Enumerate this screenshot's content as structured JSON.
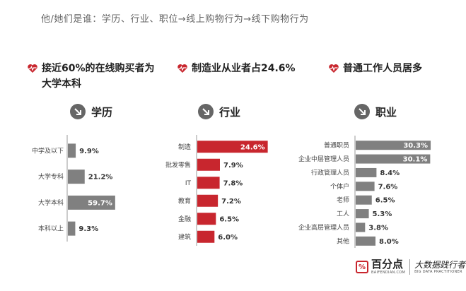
{
  "page_title": "他/她们是谁：学历、行业、职位→线上购物行为→线下购物行为",
  "colors": {
    "red": "#c8262e",
    "gray": "#808080",
    "accent_text": "#222222"
  },
  "panels": [
    {
      "headline": "接近60%的在线购买者为大学本科",
      "category": "学历"
    },
    {
      "headline": "制造业从业者占24.6%",
      "category": "行业"
    },
    {
      "headline": "普通工作人员居多",
      "category": "职业"
    }
  ],
  "chart_data": [
    {
      "type": "bar",
      "orientation": "horizontal",
      "title": "学历",
      "categories": [
        "中学及以下",
        "大学专科",
        "大学本科",
        "本科以上"
      ],
      "values": [
        9.9,
        21.2,
        59.7,
        9.3
      ],
      "labels": [
        "9.9%",
        "21.2%",
        "59.7%",
        "9.3%"
      ],
      "highlight_index": 2
    },
    {
      "type": "bar",
      "orientation": "horizontal",
      "title": "行业",
      "categories": [
        "制造",
        "批发零售",
        "IT",
        "教育",
        "金融",
        "建筑"
      ],
      "values": [
        24.6,
        7.9,
        7.8,
        7.2,
        6.5,
        6.0
      ],
      "labels": [
        "24.6%",
        "7.9%",
        "7.8%",
        "7.2%",
        "6.5%",
        "6.0%"
      ],
      "highlight_index": 0
    },
    {
      "type": "bar",
      "orientation": "horizontal",
      "title": "职业",
      "categories": [
        "普通职员",
        "企业中层管理人员",
        "行政管理人员",
        "个体户",
        "老师",
        "工人",
        "企业高层管理人员",
        "其他"
      ],
      "values": [
        30.3,
        30.1,
        8.4,
        7.6,
        6.5,
        5.3,
        3.8,
        8.0
      ],
      "labels": [
        "30.3%",
        "30.1%",
        "8.4%",
        "7.6%",
        "6.5%",
        "5.3%",
        "3.8%",
        "8.0%"
      ],
      "highlight_index": -1
    }
  ],
  "logo": {
    "mark": "%",
    "name": "百分点",
    "url": "BAIFENDIAN.COM",
    "slogan": "大数据践行者",
    "sub": "BIG DATA PRACTITIONER"
  }
}
